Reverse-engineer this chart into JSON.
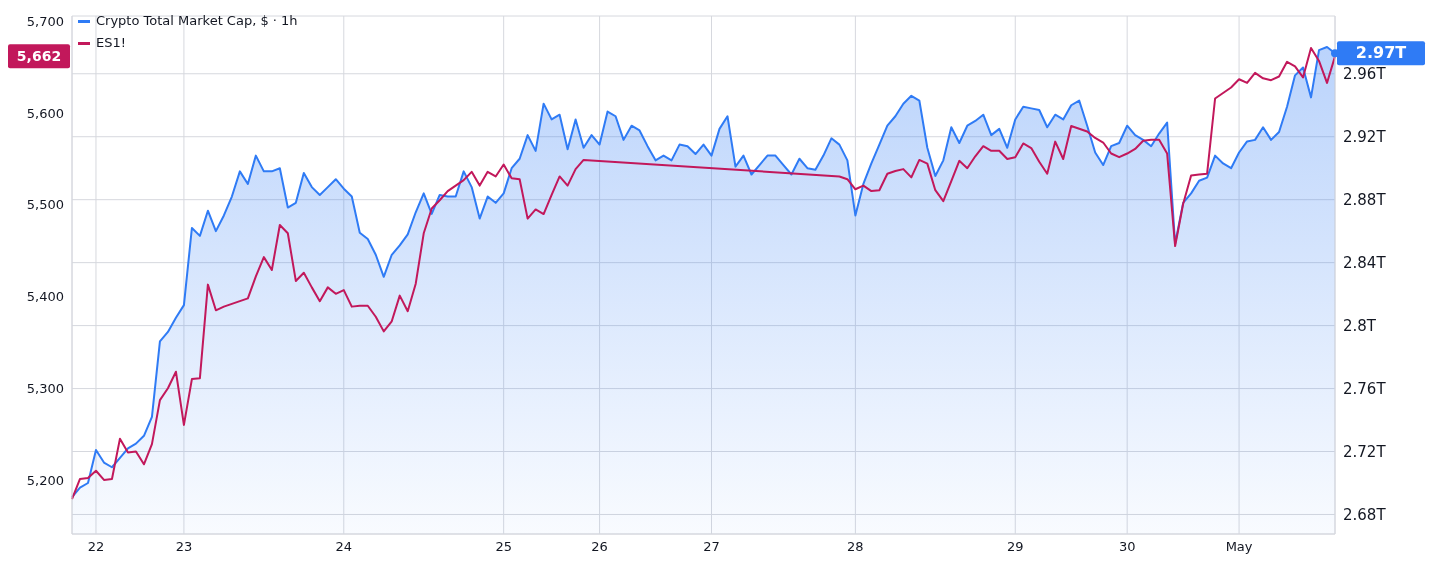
{
  "chart_data": {
    "type": "line",
    "legend": "top left",
    "grid": true,
    "categories": [
      null,
      null,
      null,
      "22",
      null,
      null,
      null,
      null,
      null,
      null,
      null,
      null,
      null,
      null,
      "23",
      null,
      null,
      null,
      null,
      null,
      null,
      null,
      null,
      null,
      null,
      null,
      null,
      null,
      null,
      null,
      null,
      null,
      null,
      null,
      "24",
      null,
      null,
      null,
      null,
      null,
      null,
      null,
      null,
      null,
      null,
      null,
      null,
      null,
      null,
      null,
      null,
      null,
      null,
      null,
      "25",
      null,
      null,
      null,
      null,
      null,
      null,
      null,
      null,
      null,
      null,
      null,
      "26",
      null,
      null,
      null,
      null,
      null,
      null,
      null,
      null,
      null,
      null,
      null,
      null,
      null,
      "27",
      null,
      null,
      null,
      null,
      null,
      null,
      null,
      null,
      null,
      null,
      null,
      null,
      null,
      null,
      null,
      null,
      null,
      "28",
      null,
      null,
      null,
      null,
      null,
      null,
      null,
      null,
      null,
      null,
      null,
      null,
      null,
      null,
      null,
      null,
      null,
      null,
      null,
      "29",
      null,
      null,
      null,
      null,
      null,
      null,
      null,
      null,
      null,
      null,
      null,
      null,
      null,
      "30",
      null,
      null,
      null,
      null,
      null,
      null,
      null,
      null,
      null,
      null,
      null,
      null,
      null,
      "May",
      null,
      null,
      null,
      null,
      null,
      null,
      null,
      null,
      null,
      null,
      null,
      null
    ],
    "ylim": [
      5141,
      5706
    ],
    "yticks": [
      {
        "value": 5200,
        "label": "5,200"
      },
      {
        "value": 5300,
        "label": "5,300"
      },
      {
        "value": 5400,
        "label": "5,400"
      },
      {
        "value": 5500,
        "label": "5,500"
      },
      {
        "value": 5600,
        "label": "5,600"
      },
      {
        "value": 5700,
        "label": "5,700"
      }
    ],
    "y2lim": [
      2.6676,
      2.9967
    ],
    "y2ticks": [
      {
        "value": 2.68,
        "label": "2.68T"
      },
      {
        "value": 2.72,
        "label": "2.72T"
      },
      {
        "value": 2.76,
        "label": "2.76T"
      },
      {
        "value": 2.8,
        "label": "2.8T"
      },
      {
        "value": 2.84,
        "label": "2.84T"
      },
      {
        "value": 2.88,
        "label": "2.88T"
      },
      {
        "value": 2.92,
        "label": "2.92T"
      },
      {
        "value": 2.96,
        "label": "2.96T"
      }
    ],
    "series": [
      {
        "name": "Crypto Total Market Cap, $ · 1h",
        "type": "area",
        "axis": "y2",
        "color": "#2f7bf5",
        "values": [
          2.691,
          2.697,
          2.7,
          2.721,
          2.713,
          2.71,
          2.716,
          2.722,
          2.725,
          2.73,
          2.742,
          2.79,
          2.796,
          2.805,
          2.813,
          2.862,
          2.857,
          2.873,
          2.86,
          2.87,
          2.882,
          2.898,
          2.89,
          2.908,
          2.898,
          2.898,
          2.9,
          2.875,
          2.878,
          2.897,
          2.888,
          2.883,
          2.888,
          2.893,
          2.887,
          2.882,
          2.859,
          2.855,
          2.845,
          2.831,
          2.845,
          2.851,
          2.858,
          2.872,
          2.884,
          2.871,
          2.883,
          2.882,
          2.882,
          2.898,
          2.888,
          2.868,
          2.882,
          2.878,
          2.884,
          2.9,
          2.906,
          2.921,
          2.911,
          2.941,
          2.931,
          2.934,
          2.912,
          2.931,
          2.913,
          2.921,
          2.915,
          2.936,
          2.933,
          2.918,
          2.927,
          2.924,
          2.914,
          2.905,
          2.908,
          2.905,
          2.915,
          2.914,
          2.909,
          2.915,
          2.908,
          2.925,
          2.933,
          2.901,
          2.908,
          2.896,
          2.902,
          2.908,
          2.908,
          2.902,
          2.896,
          2.906,
          2.9,
          2.899,
          2.908,
          2.919,
          2.915,
          2.905,
          2.87,
          2.89,
          2.903,
          2.915,
          2.927,
          2.933,
          2.941,
          2.946,
          2.943,
          2.913,
          2.895,
          2.905,
          2.926,
          2.916,
          2.927,
          2.93,
          2.934,
          2.921,
          2.925,
          2.913,
          2.931,
          2.939,
          2.938,
          2.937,
          2.926,
          2.934,
          2.931,
          2.94,
          2.943,
          2.927,
          2.91,
          2.902,
          2.914,
          2.916,
          2.927,
          2.921,
          2.918,
          2.914,
          2.922,
          2.929,
          2.852,
          2.878,
          2.884,
          2.892,
          2.894,
          2.908,
          2.903,
          2.9,
          2.91,
          2.917,
          2.918,
          2.926,
          2.918,
          2.923,
          2.939,
          2.959,
          2.964,
          2.945,
          2.975,
          2.977,
          2.973
        ],
        "value_labels": [
          null,
          null,
          null,
          null,
          null,
          null,
          null,
          null,
          null,
          null,
          null,
          null,
          null,
          null,
          null,
          null,
          null,
          null,
          null,
          null,
          null,
          null,
          null,
          null,
          null,
          null,
          null,
          null,
          null,
          null,
          null,
          null,
          null,
          null,
          null,
          null,
          null,
          null,
          null,
          null,
          null,
          null,
          null,
          null,
          null,
          null,
          null,
          null,
          null,
          null,
          null,
          null,
          null,
          null,
          null,
          null,
          null,
          null,
          null,
          null,
          null,
          null,
          null,
          null,
          null,
          null,
          null,
          null,
          null,
          null,
          null,
          null,
          null,
          null,
          null,
          null,
          null,
          null,
          null,
          null,
          null,
          null,
          null,
          null,
          null,
          null,
          null,
          null,
          null,
          null,
          null,
          null,
          null,
          null,
          null,
          null,
          null,
          null,
          null,
          null,
          null,
          null,
          null,
          null,
          null,
          null,
          null,
          null,
          null,
          null,
          null,
          null,
          null,
          null,
          null,
          null,
          null,
          null,
          null,
          null,
          null,
          null,
          null,
          null,
          null,
          null,
          null,
          null,
          null,
          null,
          null,
          null,
          null,
          null,
          null,
          null,
          null,
          null,
          null,
          null,
          null,
          null,
          null,
          null,
          null,
          null,
          null,
          null,
          null,
          null,
          null,
          null,
          null,
          null,
          null,
          null,
          null,
          null,
          "2.97T"
        ]
      },
      {
        "name": "ES1!",
        "color": "#c2185b",
        "values": [
          5179,
          5201,
          5202,
          5210,
          5200,
          5201,
          5245,
          5230,
          5231,
          5217,
          5239,
          5287,
          5300,
          5318,
          5260,
          5310,
          5311,
          5413,
          5385,
          5389,
          5392,
          5395,
          5398,
          5422,
          5443,
          5429,
          5478,
          5469,
          5417,
          5426,
          5410,
          5395,
          5410,
          5403,
          5407,
          5389,
          5390,
          5390,
          5378,
          5362,
          5373,
          5401,
          5384,
          5414,
          5469,
          5496,
          5505,
          5515,
          5521,
          5527,
          5536,
          5521,
          5536,
          5531,
          5544,
          5529,
          5528,
          5485,
          5495,
          5490,
          5511,
          5531,
          5521,
          5539,
          5549,
          null,
          null,
          null,
          null,
          null,
          null,
          null,
          null,
          null,
          null,
          null,
          null,
          null,
          null,
          null,
          null,
          null,
          null,
          null,
          null,
          null,
          null,
          null,
          null,
          null,
          null,
          null,
          null,
          null,
          null,
          null,
          5531,
          5528,
          5517,
          5521,
          5515,
          5516,
          5534,
          5537,
          5539,
          5530,
          5549,
          5545,
          5516,
          5504,
          5526,
          5548,
          5540,
          5553,
          5564,
          5559,
          5559,
          5550,
          5552,
          5567,
          5562,
          5547,
          5534,
          5569,
          5550,
          5586,
          5583,
          5580,
          5573,
          5568,
          5556,
          5552,
          5556,
          5561,
          5570,
          5571,
          5571,
          5556,
          5455,
          5501,
          5532,
          5533,
          5534,
          5616,
          5622,
          5628,
          5637,
          5633,
          5644,
          5638,
          5636,
          5640,
          5656,
          5651,
          5639,
          5671,
          5657,
          5633,
          5662
        ]
      }
    ],
    "annotations": [
      "5,662"
    ]
  }
}
